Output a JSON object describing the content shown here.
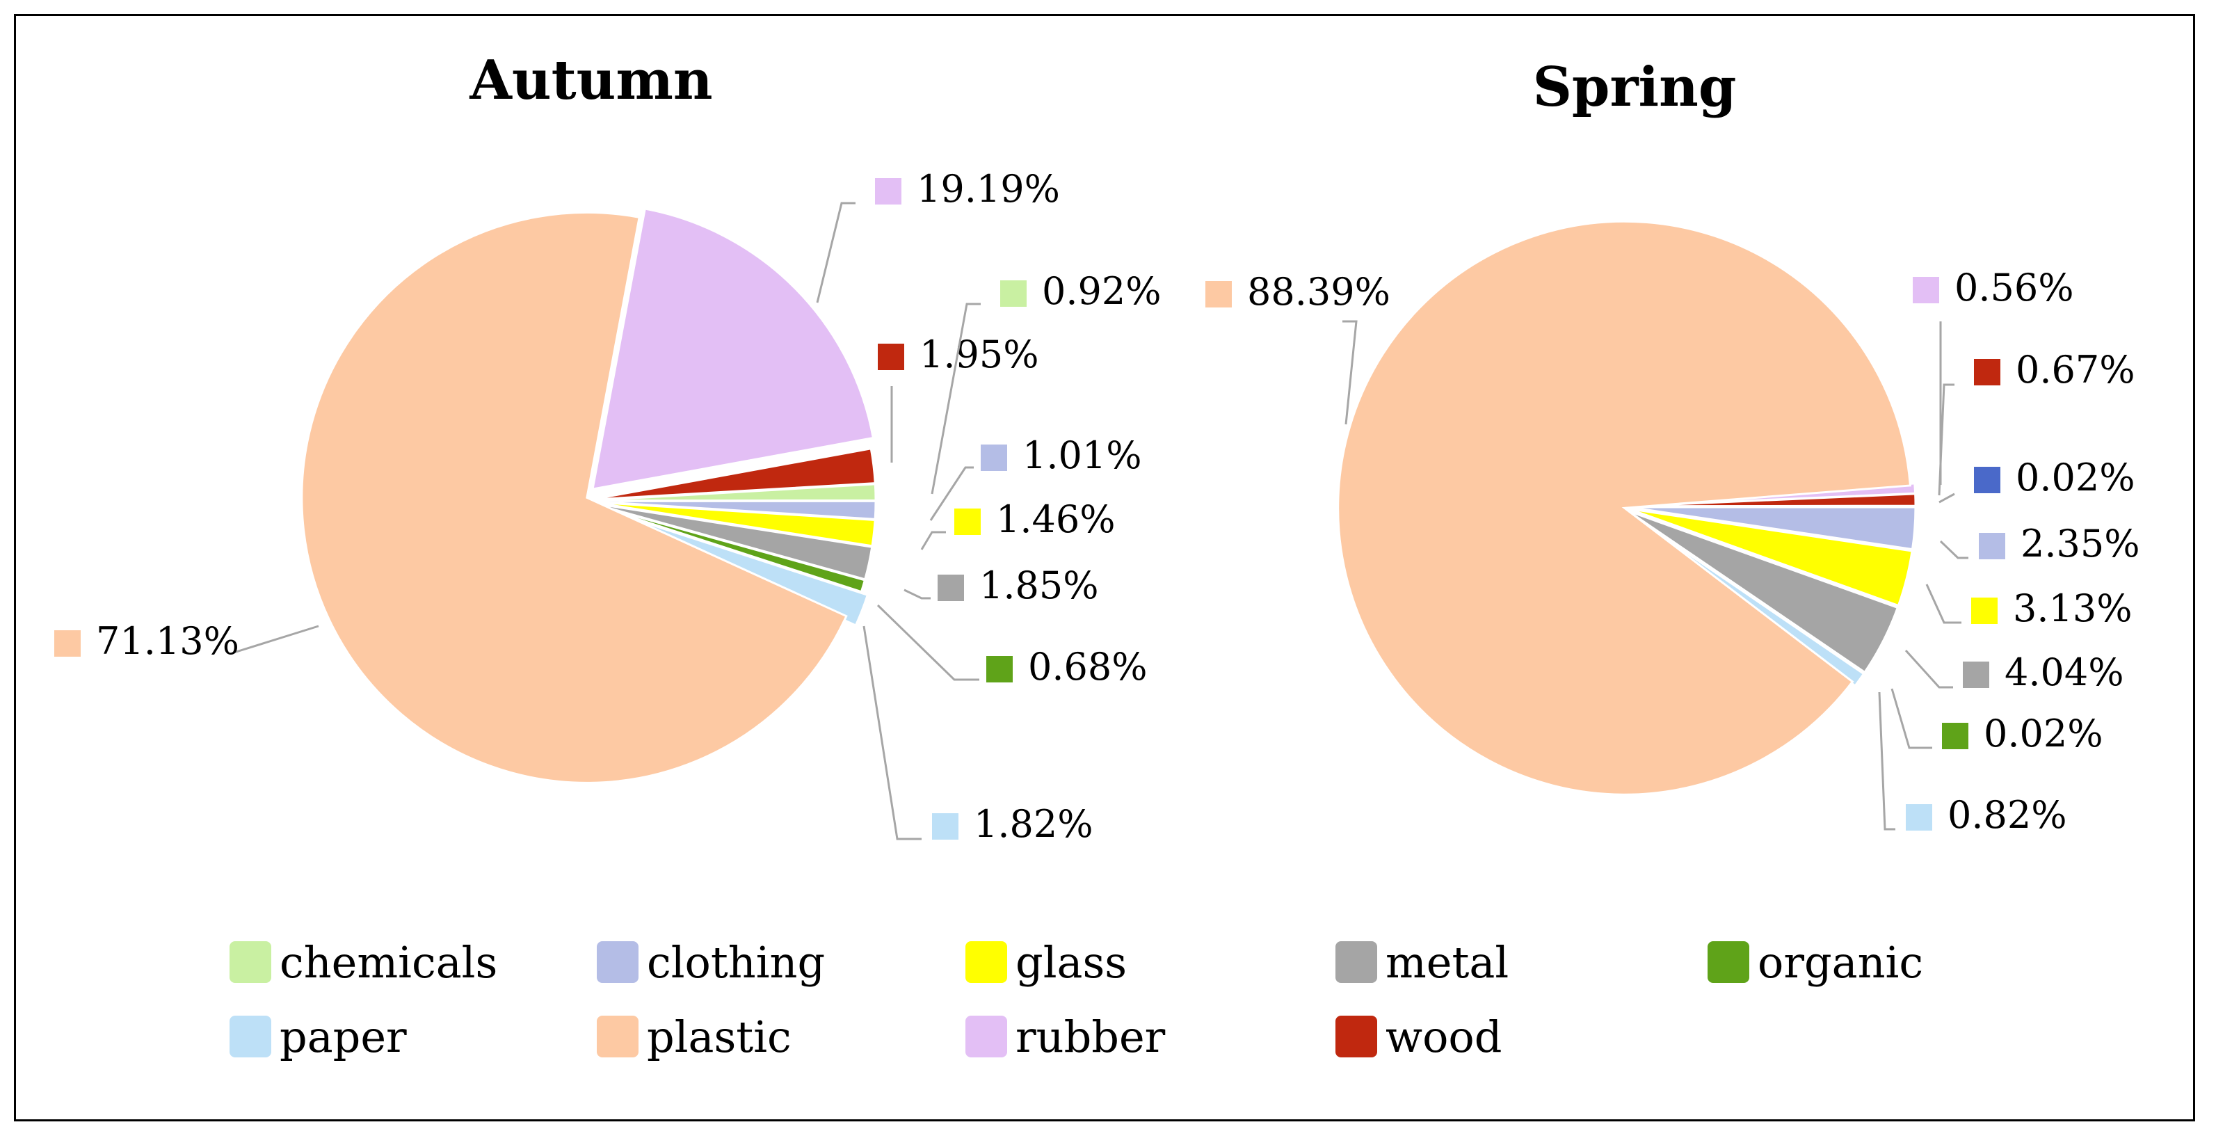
{
  "chart_data": [
    {
      "type": "pie",
      "title": "Autumn",
      "slices": [
        {
          "name": "plastic",
          "value": 71.13,
          "label": "71.13%"
        },
        {
          "name": "rubber",
          "value": 19.19,
          "label": "19.19%"
        },
        {
          "name": "wood",
          "value": 1.95,
          "label": "1.95%"
        },
        {
          "name": "chemicals",
          "value": 0.92,
          "label": "0.92%"
        },
        {
          "name": "clothing",
          "value": 1.01,
          "label": "1.01%"
        },
        {
          "name": "glass",
          "value": 1.46,
          "label": "1.46%"
        },
        {
          "name": "metal",
          "value": 1.85,
          "label": "1.85%"
        },
        {
          "name": "organic",
          "value": 0.68,
          "label": "0.68%"
        },
        {
          "name": "paper",
          "value": 1.82,
          "label": "1.82%"
        }
      ]
    },
    {
      "type": "pie",
      "title": "Spring",
      "slices": [
        {
          "name": "plastic",
          "value": 88.39,
          "label": "88.39%"
        },
        {
          "name": "rubber",
          "value": 0.56,
          "label": "0.56%"
        },
        {
          "name": "wood",
          "value": 0.67,
          "label": "0.67%"
        },
        {
          "name": "unknown-blue",
          "value": 0.02,
          "label": "0.02%"
        },
        {
          "name": "clothing",
          "value": 2.35,
          "label": "2.35%"
        },
        {
          "name": "glass",
          "value": 3.13,
          "label": "3.13%"
        },
        {
          "name": "metal",
          "value": 4.04,
          "label": "4.04%"
        },
        {
          "name": "organic",
          "value": 0.02,
          "label": "0.02%"
        },
        {
          "name": "paper",
          "value": 0.82,
          "label": "0.82%"
        }
      ]
    }
  ],
  "legend": {
    "placement": "bottom",
    "items": [
      {
        "name": "chemicals",
        "color": "#c9f0a2"
      },
      {
        "name": "clothing",
        "color": "#b4bde6"
      },
      {
        "name": "glass",
        "color": "#ffff00"
      },
      {
        "name": "metal",
        "color": "#a5a5a5"
      },
      {
        "name": "organic",
        "color": "#5fa319"
      },
      {
        "name": "paper",
        "color": "#bde0f7"
      },
      {
        "name": "plastic",
        "color": "#fdc9a3"
      },
      {
        "name": "rubber",
        "color": "#e3bff5"
      },
      {
        "name": "wood",
        "color": "#c0280f"
      }
    ]
  },
  "colors": {
    "chemicals": "#c9f0a2",
    "clothing": "#b4bde6",
    "glass": "#ffff00",
    "metal": "#a5a5a5",
    "organic": "#5fa319",
    "paper": "#bde0f7",
    "plastic": "#fdc9a3",
    "rubber": "#e3bff5",
    "wood": "#c0280f",
    "unknown-blue": "#4a69c9"
  }
}
